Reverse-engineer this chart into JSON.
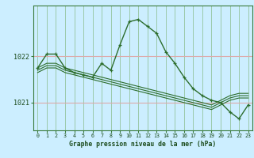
{
  "title": "Graphe pression niveau de la mer (hPa)",
  "background_color": "#cceeff",
  "grid_color_v": "#88bb88",
  "grid_color_h": "#ddaaaa",
  "line_color": "#2d6e2d",
  "hours": [
    0,
    1,
    2,
    3,
    4,
    5,
    6,
    7,
    8,
    9,
    10,
    11,
    12,
    13,
    14,
    15,
    16,
    17,
    18,
    19,
    20,
    21,
    22,
    23
  ],
  "series_main": [
    1021.75,
    1022.05,
    1022.05,
    1021.75,
    1021.65,
    1021.6,
    1021.55,
    1021.85,
    1021.7,
    1022.25,
    1022.75,
    1022.8,
    1022.65,
    1022.5,
    1022.1,
    1021.85,
    1021.55,
    1021.3,
    1021.15,
    1021.05,
    1021.0,
    1020.8,
    1020.65,
    1020.95
  ],
  "series_line2": [
    1021.75,
    1021.85,
    1021.85,
    1021.75,
    1021.7,
    1021.65,
    1021.6,
    1021.55,
    1021.5,
    1021.45,
    1021.4,
    1021.35,
    1021.3,
    1021.25,
    1021.2,
    1021.15,
    1021.1,
    1021.05,
    1021.0,
    1020.95,
    1021.05,
    1021.15,
    1021.2,
    1021.2
  ],
  "series_line3": [
    1021.7,
    1021.8,
    1021.8,
    1021.7,
    1021.65,
    1021.6,
    1021.55,
    1021.5,
    1021.45,
    1021.4,
    1021.35,
    1021.3,
    1021.25,
    1021.2,
    1021.15,
    1021.1,
    1021.05,
    1021.0,
    1020.95,
    1020.9,
    1021.0,
    1021.1,
    1021.15,
    1021.15
  ],
  "series_line4": [
    1021.65,
    1021.75,
    1021.75,
    1021.65,
    1021.6,
    1021.55,
    1021.5,
    1021.45,
    1021.4,
    1021.35,
    1021.3,
    1021.25,
    1021.2,
    1021.15,
    1021.1,
    1021.05,
    1021.0,
    1020.95,
    1020.9,
    1020.85,
    1020.95,
    1021.05,
    1021.1,
    1021.1
  ],
  "ylim": [
    1020.4,
    1023.1
  ],
  "yticks": [
    1021.0,
    1022.0
  ],
  "ytick_labels": [
    "1021",
    "1022"
  ],
  "xlabel_fontsize": 5.8,
  "ylabel_fontsize": 6.0
}
